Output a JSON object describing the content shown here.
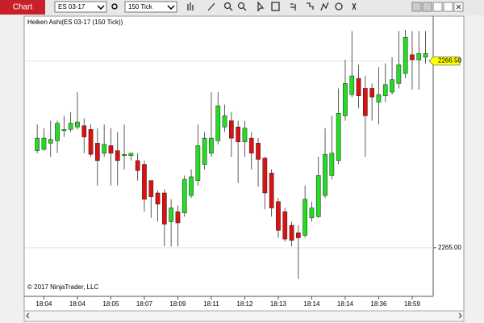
{
  "toolbar": {
    "tab": "Chart",
    "instrument": "ES 03-17",
    "interval": "150 Tick"
  },
  "chart_data": {
    "type": "candlestick",
    "title": "Heiken Ashi(ES 03-17 (150 Tick))",
    "copyright": "© 2017 NinjaTrader, LLC",
    "up_color": "#22dd22",
    "down_color": "#dd1111",
    "categories": [
      null,
      "18:04",
      null,
      null,
      null,
      null,
      "18:04",
      null,
      null,
      null,
      null,
      "18:05",
      null,
      null,
      null,
      null,
      "18:07",
      null,
      null,
      null,
      null,
      "18:09",
      null,
      null,
      null,
      null,
      "18:11",
      null,
      null,
      null,
      null,
      "18:12",
      null,
      null,
      null,
      null,
      "18:13",
      null,
      null,
      null,
      null,
      "18:14",
      null,
      null,
      null,
      null,
      "18:14",
      null,
      null,
      null,
      null,
      "18:36",
      null,
      null,
      null,
      null,
      "18:59",
      null,
      null
    ],
    "open": [
      2265.78,
      2265.79,
      2265.84,
      2265.86,
      2265.94,
      2265.95,
      2265.97,
      2265.98,
      2265.95,
      2265.84,
      2265.76,
      2265.82,
      2265.78,
      2265.74,
      2265.74,
      2265.7,
      2265.67,
      2265.54,
      2265.44,
      2265.44,
      2265.21,
      2265.29,
      2265.28,
      2265.42,
      2265.54,
      2265.67,
      2265.76,
      2265.86,
      2265.97,
      2266.02,
      2265.97,
      2265.85,
      2265.88,
      2265.84,
      2265.72,
      2265.6,
      2265.37,
      2265.29,
      2265.18,
      2265.12,
      2265.1,
      2265.24,
      2265.25,
      2265.42,
      2265.58,
      2265.7,
      2266.06,
      2266.23,
      2266.36,
      2266.28,
      2266.28,
      2266.17,
      2266.22,
      2266.25,
      2266.32,
      2266.4,
      2266.55,
      2266.51,
      2266.53
    ],
    "high": [
      2265.99,
      2265.96,
      2266.02,
      2266.02,
      2266.06,
      2266.09,
      2266.25,
      2266.04,
      2265.99,
      2265.96,
      2265.99,
      2265.96,
      2265.93,
      2265.99,
      2265.76,
      2265.76,
      2265.7,
      2265.54,
      2265.46,
      2265.47,
      2265.39,
      2265.34,
      2265.58,
      2265.63,
      2265.99,
      2265.93,
      2266.25,
      2266.25,
      2266.15,
      2266.09,
      2266.02,
      2266.02,
      2265.93,
      2265.88,
      2265.73,
      2265.63,
      2265.4,
      2265.32,
      2265.21,
      2265.18,
      2265.5,
      2265.37,
      2265.73,
      2265.96,
      2266.06,
      2266.28,
      2266.51,
      2266.74,
      2266.47,
      2266.38,
      2266.32,
      2266.45,
      2266.48,
      2266.53,
      2266.74,
      2266.75,
      2266.74,
      2266.74,
      2266.74
    ],
    "low": [
      2265.76,
      2265.78,
      2265.73,
      2265.76,
      2265.89,
      2265.93,
      2265.95,
      2265.76,
      2265.73,
      2265.5,
      2265.73,
      2265.5,
      2265.5,
      2265.63,
      2265.7,
      2265.54,
      2265.29,
      2265.24,
      2265.21,
      2265.01,
      2265.01,
      2265.01,
      2265.25,
      2265.4,
      2265.5,
      2265.63,
      2265.73,
      2265.83,
      2265.93,
      2265.73,
      2265.52,
      2265.73,
      2265.63,
      2265.49,
      2265.31,
      2265.25,
      2265.08,
      2265.05,
      2265.01,
      2264.75,
      2265.08,
      2265.21,
      2265.24,
      2265.4,
      2265.55,
      2265.67,
      2266.02,
      2266.21,
      2266.12,
      2265.73,
      2266.02,
      2265.99,
      2266.17,
      2266.23,
      2266.28,
      2266.36,
      2266.27,
      2266.27,
      2266.48
    ],
    "close": [
      2265.88,
      2265.88,
      2265.87,
      2266.0,
      2265.95,
      2266.0,
      2266.01,
      2265.89,
      2265.75,
      2265.7,
      2265.83,
      2265.76,
      2265.7,
      2265.75,
      2265.76,
      2265.62,
      2265.39,
      2265.41,
      2265.35,
      2265.19,
      2265.32,
      2265.2,
      2265.55,
      2265.57,
      2265.82,
      2265.88,
      2265.88,
      2266.14,
      2266.06,
      2265.88,
      2265.85,
      2265.96,
      2265.76,
      2265.71,
      2265.44,
      2265.32,
      2265.14,
      2265.07,
      2265.06,
      2265.08,
      2265.39,
      2265.32,
      2265.58,
      2265.75,
      2265.76,
      2266.08,
      2266.32,
      2266.38,
      2266.22,
      2266.06,
      2266.21,
      2266.23,
      2266.31,
      2266.35,
      2266.47,
      2266.69,
      2266.51,
      2266.56,
      2266.56
    ],
    "ylim": [
      2264.61,
      2266.86
    ],
    "yticks": [
      {
        "value": 2265,
        "label": "2265.00"
      },
      {
        "value": 2266.5,
        "label": "2266.50"
      }
    ],
    "last_price": {
      "value": 2266.5,
      "label": "2266.50"
    },
    "grid": true
  }
}
